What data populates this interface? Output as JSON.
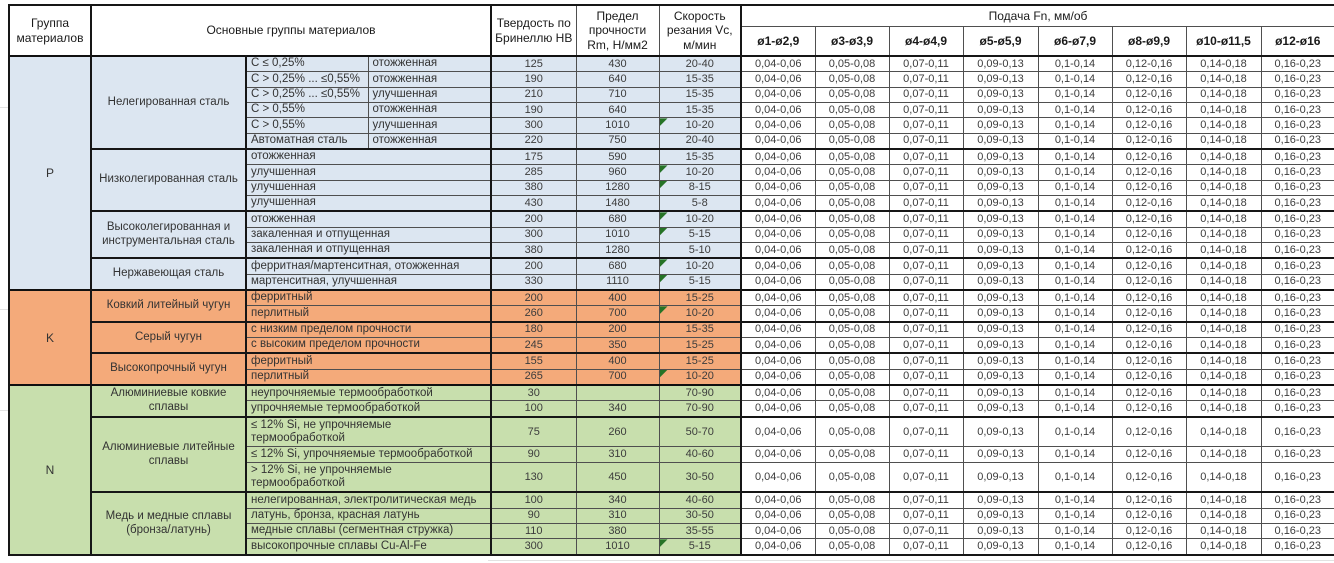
{
  "header": {
    "group": "Группа материалов",
    "main": "Основные группы материалов",
    "hardness": "Твердость по Бринеллю HB",
    "strength": "Предел прочности Rm, Н/мм2",
    "speed": "Скорость резания Vc, м/мин",
    "feed": "Подача Fn, мм/об",
    "diameters": [
      "ø1-ø2,9",
      "ø3-ø3,9",
      "ø4-ø4,9",
      "ø5-ø5,9",
      "ø6-ø7,9",
      "ø8-ø9,9",
      "ø10-ø11,5",
      "ø12-ø16"
    ]
  },
  "feeds": [
    "0,04-0,06",
    "0,05-0,08",
    "0,07-0,11",
    "0,09-0,13",
    "0,1-0,14",
    "0,12-0,16",
    "0,14-0,18",
    "0,16-0,23"
  ],
  "colors": {
    "comment_triangle": "#267326"
  },
  "groups": [
    {
      "letter": "P",
      "color": "#dce6f1",
      "families": [
        {
          "name": "Нелегированная сталь",
          "rows": [
            {
              "sub1": "C ≤ 0,25%",
              "sub2": "отожженная",
              "hb": "125",
              "rm": "430",
              "vc": "20-40",
              "flag": false
            },
            {
              "sub1": "C > 0,25% ... ≤0,55%",
              "sub2": "отожженная",
              "hb": "190",
              "rm": "640",
              "vc": "15-35",
              "flag": false
            },
            {
              "sub1": "C > 0,25% ... ≤0,55%",
              "sub2": "улучшенная",
              "hb": "210",
              "rm": "710",
              "vc": "15-35",
              "flag": false
            },
            {
              "sub1": "C > 0,55%",
              "sub2": "отожженная",
              "hb": "190",
              "rm": "640",
              "vc": "15-35",
              "flag": false
            },
            {
              "sub1": "C > 0,55%",
              "sub2": "улучшенная",
              "hb": "300",
              "rm": "1010",
              "vc": "10-20",
              "flag": true
            },
            {
              "sub1": "Автоматная сталь",
              "sub2": "отожженная",
              "hb": "220",
              "rm": "750",
              "vc": "20-40",
              "flag": false
            }
          ]
        },
        {
          "name": "Низколегированная сталь",
          "rows": [
            {
              "sub1": "отожженная",
              "hb": "175",
              "rm": "590",
              "vc": "15-35",
              "flag": false
            },
            {
              "sub1": "улучшенная",
              "hb": "285",
              "rm": "960",
              "vc": "10-20",
              "flag": true
            },
            {
              "sub1": "улучшенная",
              "hb": "380",
              "rm": "1280",
              "vc": "8-15",
              "flag": true
            },
            {
              "sub1": "улучшенная",
              "hb": "430",
              "rm": "1480",
              "vc": "5-8",
              "flag": false
            }
          ]
        },
        {
          "name": "Высоколегированная и инструментальная сталь",
          "rows": [
            {
              "sub1": "отожженная",
              "hb": "200",
              "rm": "680",
              "vc": "10-20",
              "flag": true
            },
            {
              "sub1": "закаленная и отпущенная",
              "hb": "300",
              "rm": "1010",
              "vc": "5-15",
              "flag": true
            },
            {
              "sub1": "закаленная и отпущенная",
              "hb": "380",
              "rm": "1280",
              "vc": "5-10",
              "flag": false
            }
          ]
        },
        {
          "name": "Нержавеющая сталь",
          "rows": [
            {
              "sub1": "ферритная/мартенситная, отожженная",
              "hb": "200",
              "rm": "680",
              "vc": "10-20",
              "flag": true
            },
            {
              "sub1": "мартенситная, улучшенная",
              "hb": "330",
              "rm": "1110",
              "vc": "5-15",
              "flag": true
            }
          ]
        }
      ]
    },
    {
      "letter": "K",
      "color": "#f4aa7a",
      "families": [
        {
          "name": "Ковкий литейный чугун",
          "rows": [
            {
              "sub1": "ферритный",
              "hb": "200",
              "rm": "400",
              "vc": "15-25",
              "flag": false
            },
            {
              "sub1": "перлитный",
              "hb": "260",
              "rm": "700",
              "vc": "10-20",
              "flag": true
            }
          ]
        },
        {
          "name": "Серый чугун",
          "rows": [
            {
              "sub1": "с низким пределом прочности",
              "hb": "180",
              "rm": "200",
              "vc": "15-35",
              "flag": false
            },
            {
              "sub1": "с высоким пределом прочности",
              "hb": "245",
              "rm": "350",
              "vc": "15-25",
              "flag": false
            }
          ]
        },
        {
          "name": "Высокопрочный чугун",
          "rows": [
            {
              "sub1": "ферритный",
              "hb": "155",
              "rm": "400",
              "vc": "15-25",
              "flag": false
            },
            {
              "sub1": "перлитный",
              "hb": "265",
              "rm": "700",
              "vc": "10-20",
              "flag": true
            }
          ]
        }
      ]
    },
    {
      "letter": "N",
      "color": "#c8dfad",
      "families": [
        {
          "name": "Алюминиевые ковкие сплавы",
          "rows": [
            {
              "sub1": "неупрочняемые термообработкой",
              "hb": "30",
              "rm": "",
              "vc": "70-90",
              "flag": false
            },
            {
              "sub1": "упрочняемые термообработкой",
              "hb": "100",
              "rm": "340",
              "vc": "70-90",
              "flag": false
            }
          ]
        },
        {
          "name": "Алюминиевые литейные сплавы",
          "rows": [
            {
              "sub1": "≤ 12% Si, не упрочняемые термообработкой",
              "hb": "75",
              "rm": "260",
              "vc": "50-70",
              "flag": false
            },
            {
              "sub1": "≤ 12% Si, упрочняемые термообработкой",
              "hb": "90",
              "rm": "310",
              "vc": "40-60",
              "flag": false
            },
            {
              "sub1": "> 12% Si, не упрочняемые термообработкой",
              "hb": "130",
              "rm": "450",
              "vc": "30-50",
              "flag": false
            }
          ]
        },
        {
          "name": "Медь и медные сплавы (бронза/латунь)",
          "rows": [
            {
              "sub1": "нелегированная, электролитическая медь",
              "hb": "100",
              "rm": "340",
              "vc": "40-60",
              "flag": false
            },
            {
              "sub1": "латунь, бронза, красная латунь",
              "hb": "90",
              "rm": "310",
              "vc": "30-50",
              "flag": false
            },
            {
              "sub1": "медные сплавы (сегментная стружка)",
              "hb": "110",
              "rm": "380",
              "vc": "35-55",
              "flag": false
            },
            {
              "sub1": "высокопрочные сплавы Cu-Al-Fe",
              "hb": "300",
              "rm": "1010",
              "vc": "5-15",
              "flag": true
            }
          ]
        }
      ]
    }
  ]
}
